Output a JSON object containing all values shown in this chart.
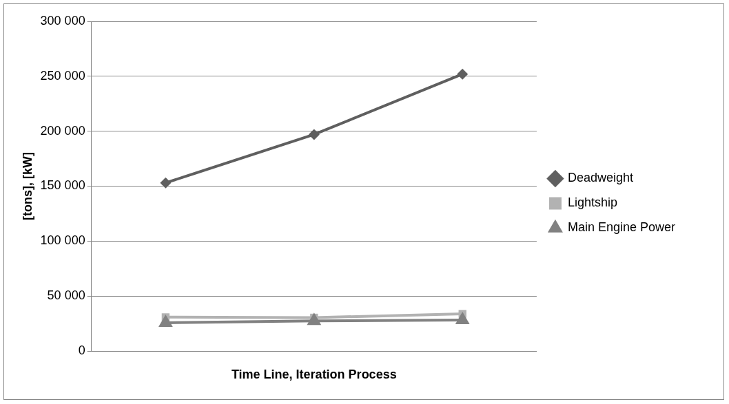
{
  "chart_data": {
    "type": "line",
    "xlabel": "Time Line, Iteration Process",
    "ylabel": "[tons], [kW]",
    "categories": [
      null,
      null,
      null
    ],
    "series": [
      {
        "name": "Deadweight",
        "color": "#5f5f5f",
        "values": [
          153000,
          197000,
          252000
        ],
        "marker": "diamond"
      },
      {
        "name": "Lightship",
        "color": "#b2b2b2",
        "values": [
          30800,
          30400,
          33800
        ],
        "marker": "square"
      },
      {
        "name": "Main Engine Power",
        "color": "#818181",
        "values": [
          25700,
          27400,
          28200
        ],
        "marker": "triangle"
      }
    ],
    "ylim": [
      0,
      300000
    ],
    "yticks": [
      {
        "value": 0,
        "label": "0"
      },
      {
        "value": 50000,
        "label": "50 000"
      },
      {
        "value": 100000,
        "label": "100 000"
      },
      {
        "value": 150000,
        "label": "150 000"
      },
      {
        "value": 200000,
        "label": "200 000"
      },
      {
        "value": 250000,
        "label": "250 000"
      },
      {
        "value": 300000,
        "label": "300 000"
      }
    ],
    "grid": "y",
    "legend": "right",
    "line_style": "solid"
  }
}
